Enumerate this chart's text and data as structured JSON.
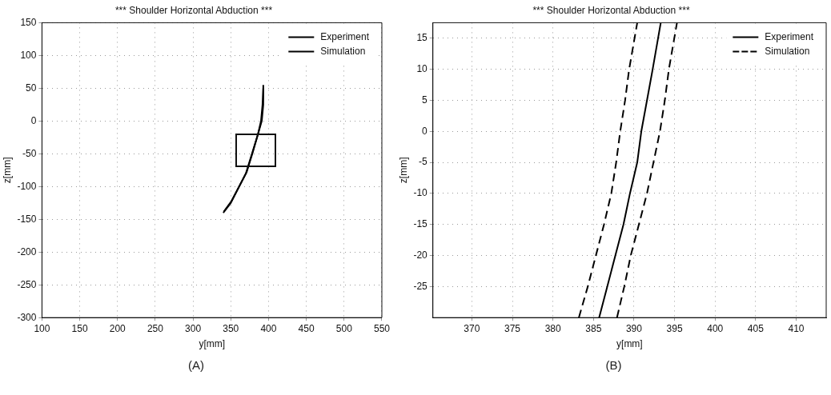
{
  "chart_data": [
    {
      "type": "line",
      "title": "*** Shoulder Horizontal Abduction ***",
      "xlabel": "y[mm]",
      "ylabel": "z[mm]",
      "xlim": [
        100,
        550
      ],
      "ylim": [
        -300,
        150
      ],
      "xticks": [
        100,
        150,
        200,
        250,
        300,
        350,
        400,
        450,
        500,
        550
      ],
      "yticks": [
        -300,
        -250,
        -200,
        -150,
        -100,
        -50,
        0,
        50,
        100,
        150
      ],
      "grid": true,
      "legend": "top right",
      "marker": "none",
      "annotations": [
        "(A)"
      ],
      "series": [
        {
          "name": "Experiment",
          "color": "#000000",
          "line_style": "solid",
          "x": [
            340,
            350,
            361,
            370,
            378,
            386,
            391,
            393,
            393
          ],
          "values": [
            -140,
            -125,
            -100,
            -80,
            -50,
            -20,
            0,
            25,
            55
          ]
        },
        {
          "name": "Simulation",
          "color": "#000000",
          "line_style": "solid",
          "x": [
            341,
            351,
            362,
            371,
            379,
            386,
            390,
            392,
            393
          ],
          "values": [
            -138,
            -122,
            -98,
            -78,
            -48,
            -20,
            0,
            25,
            50
          ]
        }
      ]
    },
    {
      "type": "line",
      "title": "*** Shoulder Horizontal Abduction ***",
      "xlabel": "y[mm]",
      "ylabel": "z[mm]",
      "xlim": [
        365.2,
        413.7
      ],
      "ylim": [
        -30,
        17.5
      ],
      "xticks": [
        370,
        375,
        380,
        385,
        390,
        395,
        400,
        405,
        410
      ],
      "yticks": [
        -25,
        -20,
        -15,
        -10,
        -5,
        0,
        5,
        10,
        15
      ],
      "grid": true,
      "legend": "top right",
      "marker": "none",
      "annotations": [
        "(B)"
      ],
      "series": [
        {
          "name": "Experiment",
          "color": "#000000",
          "line_style": "solid",
          "x": [
            385.7,
            386.7,
            387.7,
            388.7,
            389.5,
            390.4,
            390.9,
            391.6,
            392.3,
            393.3
          ],
          "values": [
            -30,
            -25,
            -20,
            -15,
            -10,
            -5,
            0,
            5,
            10,
            17.5
          ]
        },
        {
          "name": "Simulation",
          "color": "#000000",
          "line_style": "dashed",
          "x": [
            383.2,
            384.3,
            385.3,
            386.3,
            387.2,
            387.8,
            388.3,
            388.9,
            389.4,
            390.4
          ],
          "values": [
            -30,
            -25,
            -20,
            -15,
            -10,
            -5,
            0,
            5,
            10,
            17.5
          ]
        },
        {
          "color": "#000000",
          "line_style": "dashed",
          "x": [
            387.9,
            388.8,
            389.6,
            390.6,
            391.6,
            392.4,
            393.2,
            393.8,
            394.3,
            395.3
          ],
          "values": [
            -30,
            -25,
            -20,
            -15,
            -10,
            -5,
            0,
            5,
            10,
            17.5
          ]
        }
      ]
    }
  ]
}
